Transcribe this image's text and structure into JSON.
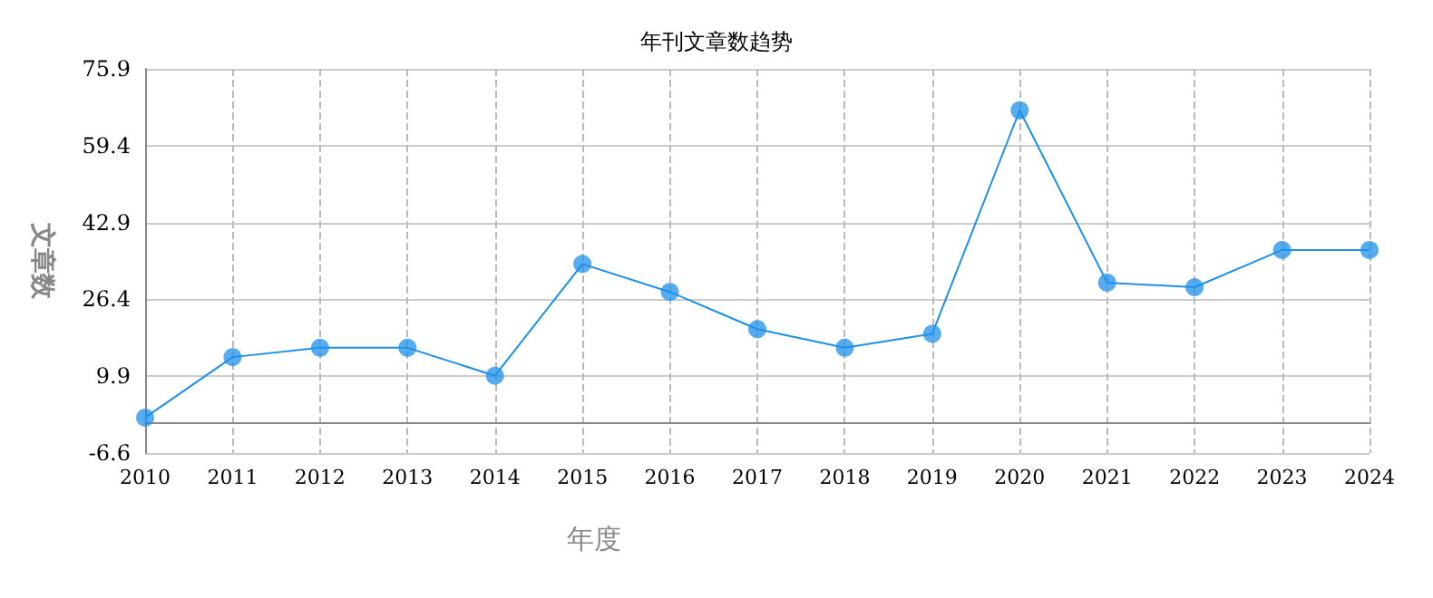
{
  "chart_data": {
    "type": "line",
    "title": "年刊文章数趋势",
    "xlabel": "年度",
    "ylabel": "文章数",
    "categories": [
      "2010",
      "2011",
      "2012",
      "2013",
      "2014",
      "2015",
      "2016",
      "2017",
      "2018",
      "2019",
      "2020",
      "2021",
      "2022",
      "2023",
      "2024"
    ],
    "series": [
      {
        "color": "#1e90e8",
        "values": [
          1,
          14,
          16,
          16,
          10,
          34,
          28,
          20,
          16,
          19,
          67,
          30,
          29,
          37,
          37
        ]
      }
    ],
    "ylim": [
      -6.6,
      75.9
    ],
    "yticks": [
      -6.6,
      9.9,
      26.4,
      42.9,
      59.4,
      75.9
    ],
    "grid": true,
    "marker": "circle",
    "line_style": "solid"
  }
}
